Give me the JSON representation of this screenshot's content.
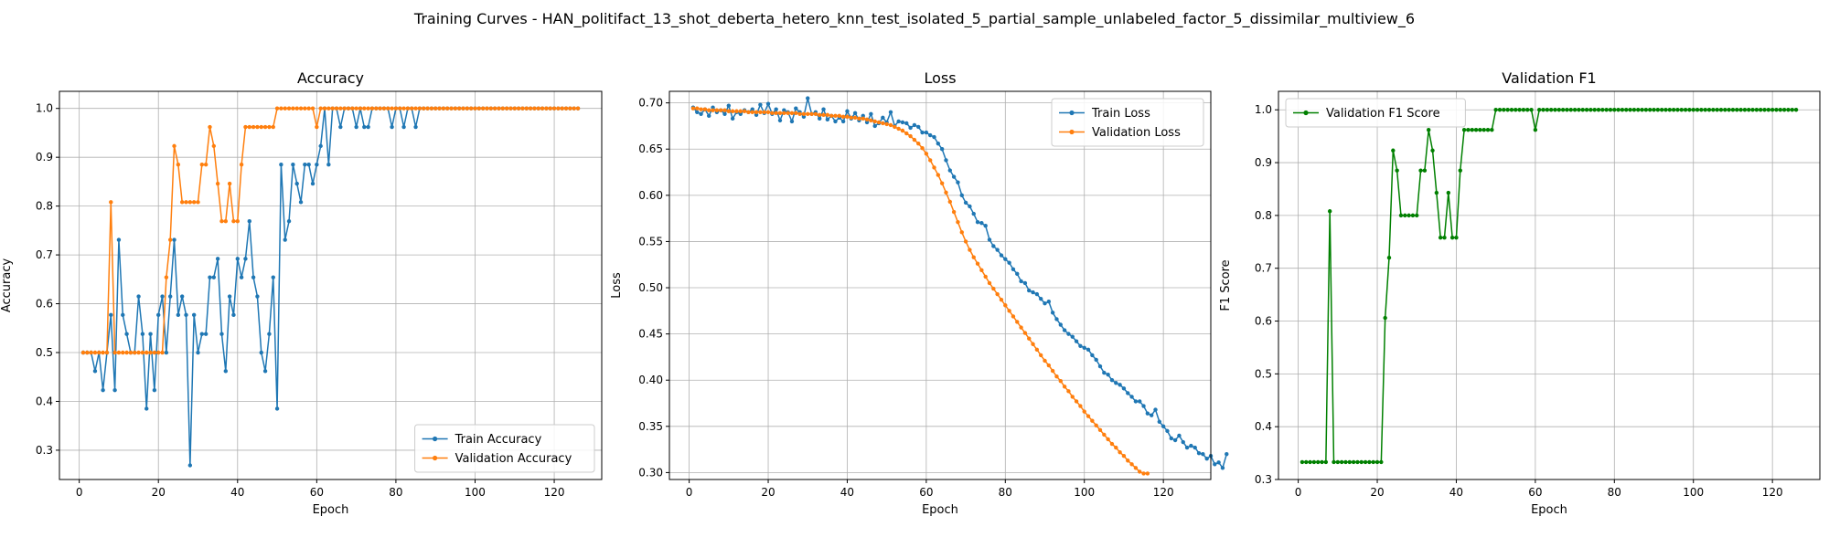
{
  "figure": {
    "suptitle": "Training Curves - HAN_politifact_13_shot_deberta_hetero_knn_test_isolated_5_partial_sample_unlabeled_factor_5_dissimilar_multiview_6"
  },
  "chart_data": [
    {
      "type": "line",
      "title": "Accuracy",
      "xlabel": "Epoch",
      "ylabel": "Accuracy",
      "xlim": [
        -5,
        132
      ],
      "ylim": [
        0.24,
        1.035
      ],
      "xticks": [
        0,
        20,
        40,
        60,
        80,
        100,
        120
      ],
      "yticks": [
        0.3,
        0.4,
        0.5,
        0.6,
        0.7,
        0.8,
        0.9,
        1.0
      ],
      "grid": true,
      "legend_position": "lower-right",
      "series": [
        {
          "name": "Train Accuracy",
          "color": "#1f77b4",
          "y": [
            0.5,
            0.5,
            0.5,
            0.462,
            0.5,
            0.423,
            0.5,
            0.577,
            0.423,
            0.731,
            0.577,
            0.538,
            0.5,
            0.5,
            0.615,
            0.538,
            0.385,
            0.538,
            0.423,
            0.577,
            0.615,
            0.5,
            0.615,
            0.731,
            0.577,
            0.615,
            0.577,
            0.269,
            0.577,
            0.5,
            0.538,
            0.538,
            0.654,
            0.654,
            0.692,
            0.538,
            0.462,
            0.615,
            0.577,
            0.692,
            0.654,
            0.692,
            0.769,
            0.654,
            0.615,
            0.5,
            0.462,
            0.538,
            0.654,
            0.385,
            0.885,
            0.731,
            0.769,
            0.885,
            0.846,
            0.808,
            0.885,
            0.885,
            0.846,
            0.885,
            0.923,
            1.0,
            0.885,
            1.0,
            1.0,
            0.962,
            1.0,
            1.0,
            1.0,
            0.962,
            1.0,
            0.962,
            0.962,
            1.0,
            1.0,
            1.0,
            1.0,
            1.0,
            0.962,
            1.0,
            1.0,
            0.962,
            1.0,
            1.0,
            0.962,
            1.0,
            1.0,
            1.0,
            1.0,
            1.0,
            1.0,
            1.0,
            1.0,
            1.0,
            1.0,
            1.0,
            1.0,
            1.0,
            1.0,
            1.0,
            1.0,
            1.0,
            1.0,
            1.0,
            1.0,
            1.0,
            1.0,
            1.0,
            1.0,
            1.0,
            1.0,
            1.0,
            1.0,
            1.0,
            1.0,
            1.0,
            1.0,
            1.0,
            1.0,
            1.0,
            1.0,
            1.0,
            1.0,
            1.0,
            1.0,
            1.0
          ]
        },
        {
          "name": "Validation Accuracy",
          "color": "#ff7f0e",
          "y": [
            0.5,
            0.5,
            0.5,
            0.5,
            0.5,
            0.5,
            0.5,
            0.808,
            0.5,
            0.5,
            0.5,
            0.5,
            0.5,
            0.5,
            0.5,
            0.5,
            0.5,
            0.5,
            0.5,
            0.5,
            0.5,
            0.654,
            0.731,
            0.923,
            0.885,
            0.808,
            0.808,
            0.808,
            0.808,
            0.808,
            0.885,
            0.885,
            0.962,
            0.923,
            0.846,
            0.769,
            0.769,
            0.846,
            0.769,
            0.769,
            0.885,
            0.962,
            0.962,
            0.962,
            0.962,
            0.962,
            0.962,
            0.962,
            0.962,
            1.0,
            1.0,
            1.0,
            1.0,
            1.0,
            1.0,
            1.0,
            1.0,
            1.0,
            1.0,
            0.962,
            1.0,
            1.0,
            1.0,
            1.0,
            1.0,
            1.0,
            1.0,
            1.0,
            1.0,
            1.0,
            1.0,
            1.0,
            1.0,
            1.0,
            1.0,
            1.0,
            1.0,
            1.0,
            1.0,
            1.0,
            1.0,
            1.0,
            1.0,
            1.0,
            1.0,
            1.0,
            1.0,
            1.0,
            1.0,
            1.0,
            1.0,
            1.0,
            1.0,
            1.0,
            1.0,
            1.0,
            1.0,
            1.0,
            1.0,
            1.0,
            1.0,
            1.0,
            1.0,
            1.0,
            1.0,
            1.0,
            1.0,
            1.0,
            1.0,
            1.0,
            1.0,
            1.0,
            1.0,
            1.0,
            1.0,
            1.0,
            1.0,
            1.0,
            1.0,
            1.0,
            1.0,
            1.0,
            1.0,
            1.0,
            1.0,
            1.0
          ]
        }
      ]
    },
    {
      "type": "line",
      "title": "Loss",
      "xlabel": "Epoch",
      "ylabel": "Loss",
      "xlim": [
        -5,
        132
      ],
      "ylim": [
        0.2925,
        0.7125
      ],
      "xticks": [
        0,
        20,
        40,
        60,
        80,
        100,
        120
      ],
      "yticks": [
        0.3,
        0.35,
        0.4,
        0.45,
        0.5,
        0.55,
        0.6,
        0.65,
        0.7
      ],
      "grid": true,
      "legend_position": "upper-right",
      "series": [
        {
          "name": "Train Loss",
          "color": "#1f77b4",
          "y": [
            0.695,
            0.69,
            0.688,
            0.693,
            0.686,
            0.695,
            0.69,
            0.692,
            0.688,
            0.697,
            0.683,
            0.69,
            0.688,
            0.692,
            0.69,
            0.693,
            0.687,
            0.698,
            0.689,
            0.699,
            0.688,
            0.693,
            0.681,
            0.692,
            0.69,
            0.68,
            0.694,
            0.69,
            0.685,
            0.705,
            0.688,
            0.69,
            0.683,
            0.693,
            0.682,
            0.686,
            0.68,
            0.684,
            0.68,
            0.691,
            0.683,
            0.689,
            0.681,
            0.686,
            0.679,
            0.688,
            0.675,
            0.678,
            0.684,
            0.679,
            0.69,
            0.675,
            0.68,
            0.679,
            0.678,
            0.673,
            0.676,
            0.674,
            0.668,
            0.668,
            0.665,
            0.663,
            0.656,
            0.65,
            0.638,
            0.627,
            0.62,
            0.614,
            0.6,
            0.592,
            0.588,
            0.58,
            0.571,
            0.57,
            0.567,
            0.552,
            0.545,
            0.541,
            0.535,
            0.531,
            0.527,
            0.52,
            0.515,
            0.507,
            0.505,
            0.497,
            0.495,
            0.493,
            0.488,
            0.483,
            0.485,
            0.473,
            0.466,
            0.46,
            0.454,
            0.45,
            0.447,
            0.442,
            0.437,
            0.435,
            0.433,
            0.427,
            0.422,
            0.415,
            0.408,
            0.406,
            0.4,
            0.397,
            0.395,
            0.391,
            0.386,
            0.382,
            0.377,
            0.377,
            0.372,
            0.364,
            0.362,
            0.368,
            0.355,
            0.35,
            0.345,
            0.337,
            0.335,
            0.34,
            0.333,
            0.327,
            0.329,
            0.327,
            0.321,
            0.32,
            0.315,
            0.318,
            0.309,
            0.311,
            0.305,
            0.32
          ]
        },
        {
          "name": "Validation Loss",
          "color": "#ff7f0e",
          "y": [
            0.694,
            0.694,
            0.693,
            0.693,
            0.692,
            0.692,
            0.692,
            0.692,
            0.692,
            0.691,
            0.691,
            0.691,
            0.691,
            0.691,
            0.69,
            0.69,
            0.69,
            0.69,
            0.69,
            0.69,
            0.689,
            0.689,
            0.689,
            0.689,
            0.689,
            0.689,
            0.689,
            0.688,
            0.688,
            0.688,
            0.688,
            0.688,
            0.687,
            0.687,
            0.687,
            0.686,
            0.686,
            0.686,
            0.685,
            0.685,
            0.684,
            0.684,
            0.683,
            0.683,
            0.682,
            0.681,
            0.68,
            0.679,
            0.678,
            0.677,
            0.676,
            0.674,
            0.672,
            0.67,
            0.667,
            0.664,
            0.66,
            0.656,
            0.651,
            0.645,
            0.638,
            0.63,
            0.622,
            0.613,
            0.603,
            0.593,
            0.582,
            0.571,
            0.56,
            0.55,
            0.541,
            0.533,
            0.526,
            0.519,
            0.512,
            0.505,
            0.499,
            0.493,
            0.487,
            0.481,
            0.475,
            0.469,
            0.463,
            0.457,
            0.451,
            0.445,
            0.439,
            0.433,
            0.427,
            0.421,
            0.416,
            0.41,
            0.404,
            0.399,
            0.393,
            0.388,
            0.382,
            0.377,
            0.372,
            0.366,
            0.361,
            0.356,
            0.351,
            0.346,
            0.341,
            0.336,
            0.331,
            0.327,
            0.322,
            0.318,
            0.313,
            0.309,
            0.305,
            0.301,
            0.299,
            0.299
          ]
        }
      ]
    },
    {
      "type": "line",
      "title": "Validation F1",
      "xlabel": "Epoch",
      "ylabel": "F1 Score",
      "xlim": [
        -5,
        132
      ],
      "ylim": [
        0.3,
        1.035
      ],
      "xticks": [
        0,
        20,
        40,
        60,
        80,
        100,
        120
      ],
      "yticks": [
        0.3,
        0.4,
        0.5,
        0.6,
        0.7,
        0.8,
        0.9,
        1.0
      ],
      "grid": true,
      "legend_position": "upper-left",
      "series": [
        {
          "name": "Validation F1 Score",
          "color": "#008000",
          "y": [
            0.333,
            0.333,
            0.333,
            0.333,
            0.333,
            0.333,
            0.333,
            0.808,
            0.333,
            0.333,
            0.333,
            0.333,
            0.333,
            0.333,
            0.333,
            0.333,
            0.333,
            0.333,
            0.333,
            0.333,
            0.333,
            0.606,
            0.72,
            0.923,
            0.885,
            0.8,
            0.8,
            0.8,
            0.8,
            0.8,
            0.885,
            0.885,
            0.962,
            0.923,
            0.843,
            0.758,
            0.758,
            0.843,
            0.758,
            0.758,
            0.885,
            0.962,
            0.962,
            0.962,
            0.962,
            0.962,
            0.962,
            0.962,
            0.962,
            1.0,
            1.0,
            1.0,
            1.0,
            1.0,
            1.0,
            1.0,
            1.0,
            1.0,
            1.0,
            0.962,
            1.0,
            1.0,
            1.0,
            1.0,
            1.0,
            1.0,
            1.0,
            1.0,
            1.0,
            1.0,
            1.0,
            1.0,
            1.0,
            1.0,
            1.0,
            1.0,
            1.0,
            1.0,
            1.0,
            1.0,
            1.0,
            1.0,
            1.0,
            1.0,
            1.0,
            1.0,
            1.0,
            1.0,
            1.0,
            1.0,
            1.0,
            1.0,
            1.0,
            1.0,
            1.0,
            1.0,
            1.0,
            1.0,
            1.0,
            1.0,
            1.0,
            1.0,
            1.0,
            1.0,
            1.0,
            1.0,
            1.0,
            1.0,
            1.0,
            1.0,
            1.0,
            1.0,
            1.0,
            1.0,
            1.0,
            1.0,
            1.0,
            1.0,
            1.0,
            1.0,
            1.0,
            1.0,
            1.0,
            1.0,
            1.0,
            1.0
          ]
        }
      ]
    }
  ]
}
